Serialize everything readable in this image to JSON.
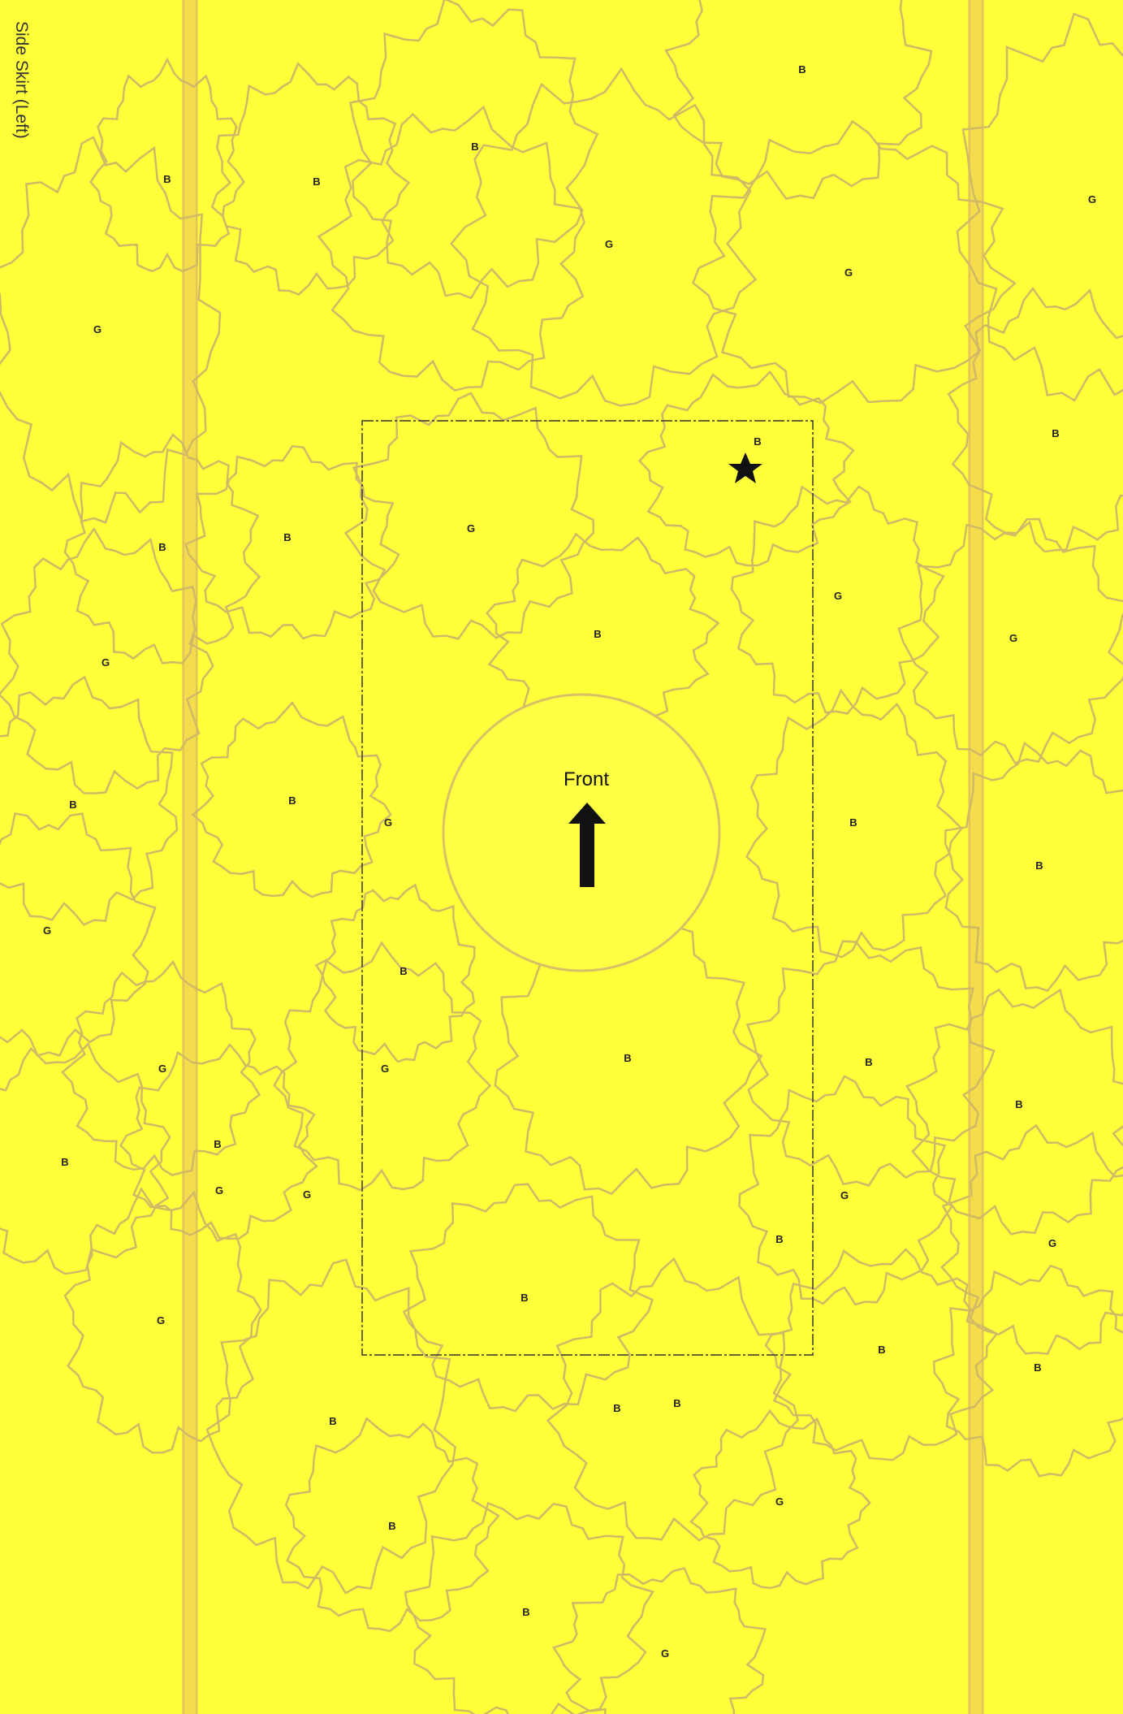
{
  "side_label": "Side Skirt (Left)",
  "front_label": "Front",
  "colors": {
    "background": "#ffff3a",
    "outline": "#d1b866",
    "strip": "#f2d64a",
    "text": "#222222"
  },
  "icons": [
    "star-icon",
    "up-arrow-icon"
  ],
  "markers": [
    {
      "label": "B"
    },
    {
      "label": "B"
    },
    {
      "label": "B"
    },
    {
      "label": "B"
    },
    {
      "label": "G"
    },
    {
      "label": "G"
    },
    {
      "label": "G"
    },
    {
      "label": "G"
    },
    {
      "label": "B"
    },
    {
      "label": "B"
    },
    {
      "label": "B"
    },
    {
      "label": "B"
    },
    {
      "label": "G"
    },
    {
      "label": "G"
    },
    {
      "label": "B"
    },
    {
      "label": "G"
    },
    {
      "label": "G"
    },
    {
      "label": "B"
    },
    {
      "label": "B"
    },
    {
      "label": "G"
    },
    {
      "label": "B"
    },
    {
      "label": "B"
    },
    {
      "label": "G"
    },
    {
      "label": "B"
    },
    {
      "label": "G"
    },
    {
      "label": "G"
    },
    {
      "label": "B"
    },
    {
      "label": "B"
    },
    {
      "label": "B"
    },
    {
      "label": "B"
    },
    {
      "label": "B"
    },
    {
      "label": "G"
    },
    {
      "label": "G"
    },
    {
      "label": "B"
    },
    {
      "label": "G"
    },
    {
      "label": "G"
    },
    {
      "label": "B"
    },
    {
      "label": "B"
    },
    {
      "label": "B"
    },
    {
      "label": "B"
    },
    {
      "label": "G"
    },
    {
      "label": "B"
    },
    {
      "label": "B"
    },
    {
      "label": "G"
    },
    {
      "label": "B"
    },
    {
      "label": "G"
    },
    {
      "label": "B"
    }
  ]
}
